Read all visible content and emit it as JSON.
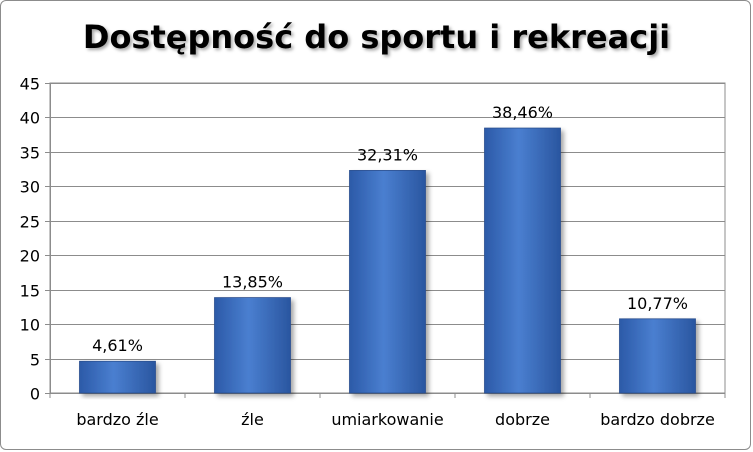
{
  "chart_data": {
    "type": "bar",
    "title": "Dostępność do sportu i rekreacji",
    "categories": [
      "bardzo źle",
      "źle",
      "umiarkowanie",
      "dobrze",
      "bardzo dobrze"
    ],
    "values": [
      4.61,
      13.85,
      32.31,
      38.46,
      10.77
    ],
    "data_labels": [
      "4,61%",
      "13,85%",
      "32,31%",
      "38,46%",
      "10,77%"
    ],
    "ylim": [
      0,
      45
    ],
    "yticks": [
      "0",
      "5",
      "10",
      "15",
      "20",
      "25",
      "30",
      "35",
      "40",
      "45"
    ],
    "ytick_values": [
      0,
      5,
      10,
      15,
      20,
      25,
      30,
      35,
      40,
      45
    ],
    "xlabel": "",
    "ylabel": "",
    "grid": true,
    "legend": "none",
    "bar_color": "#3d6fc1"
  }
}
